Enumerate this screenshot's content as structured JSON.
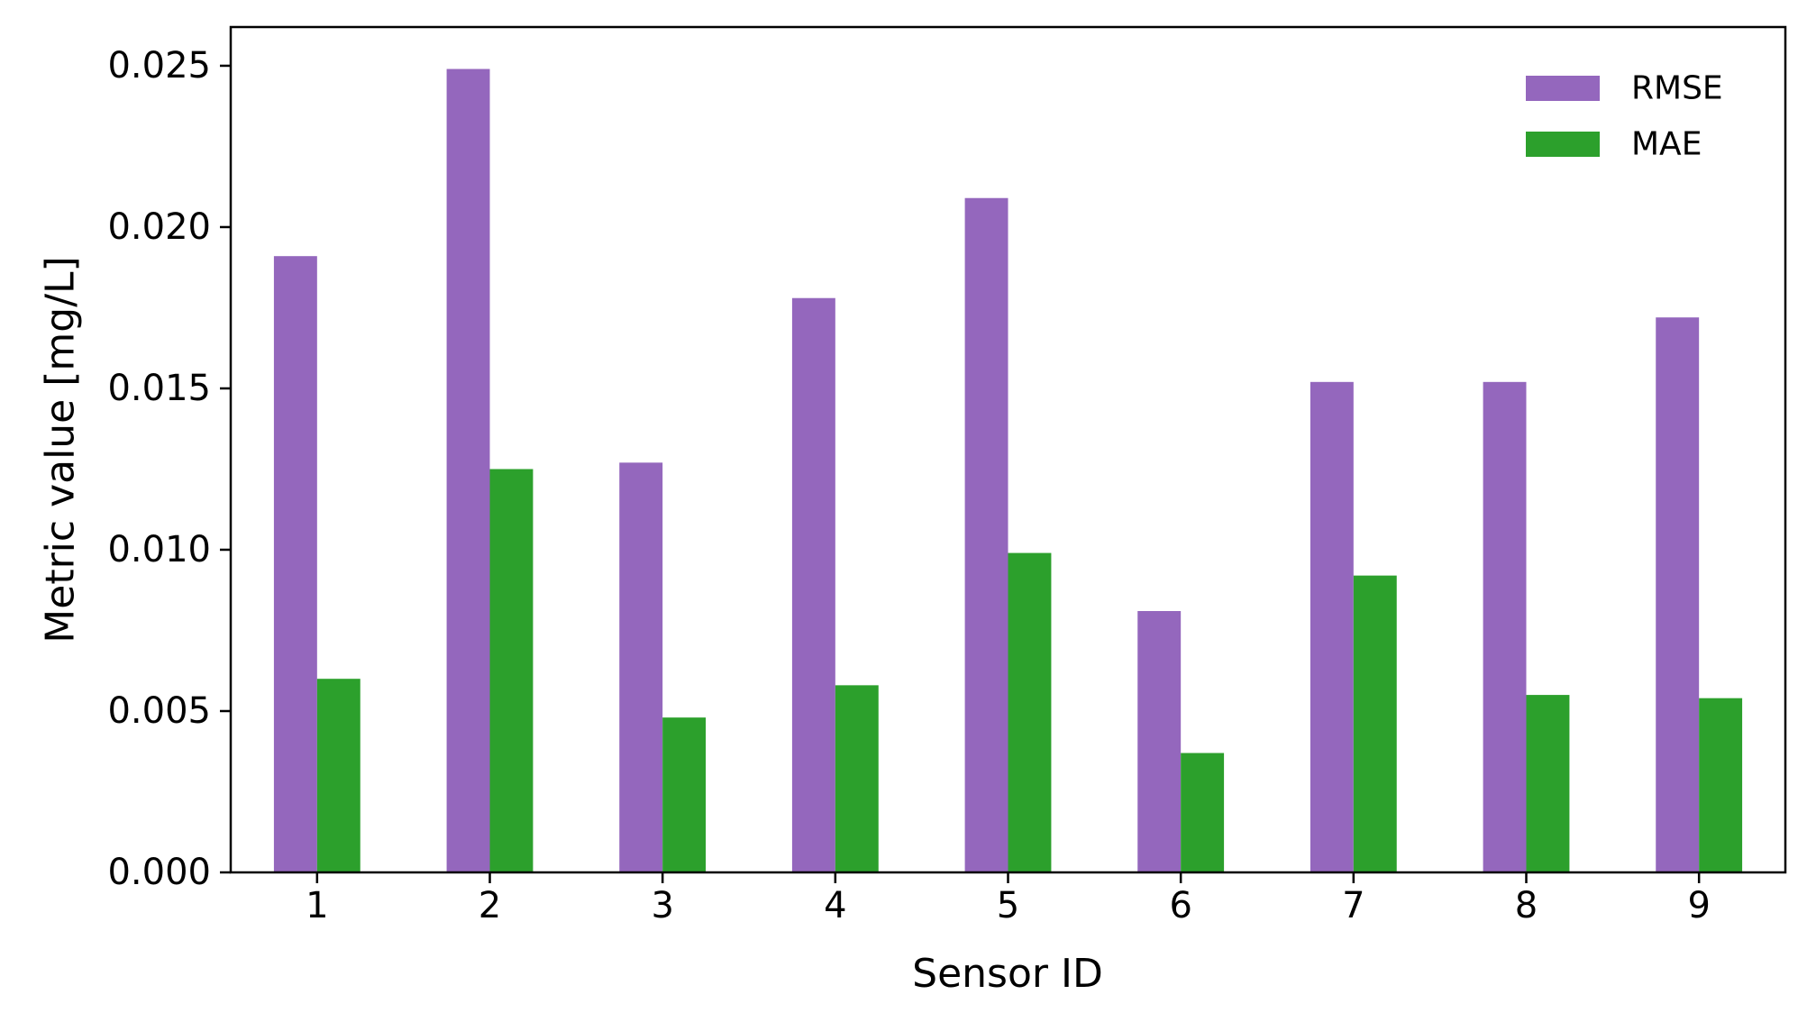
{
  "chart_data": {
    "type": "bar",
    "title": "",
    "xlabel": "Sensor ID",
    "ylabel": "Metric value [mg/L]",
    "categories": [
      "1",
      "2",
      "3",
      "4",
      "5",
      "6",
      "7",
      "8",
      "9"
    ],
    "series": [
      {
        "name": "RMSE",
        "color": "#9467bd",
        "values": [
          0.0191,
          0.0249,
          0.0127,
          0.0178,
          0.0209,
          0.0081,
          0.0152,
          0.0152,
          0.0172
        ]
      },
      {
        "name": "MAE",
        "color": "#2ca02c",
        "values": [
          0.006,
          0.0125,
          0.0048,
          0.0058,
          0.0099,
          0.0037,
          0.0092,
          0.0055,
          0.0054
        ]
      }
    ],
    "ylim": [
      0,
      0.0262
    ],
    "yticks": [
      "0.000",
      "0.005",
      "0.010",
      "0.015",
      "0.020",
      "0.025"
    ],
    "grid": false,
    "legend_position": "top-right"
  }
}
